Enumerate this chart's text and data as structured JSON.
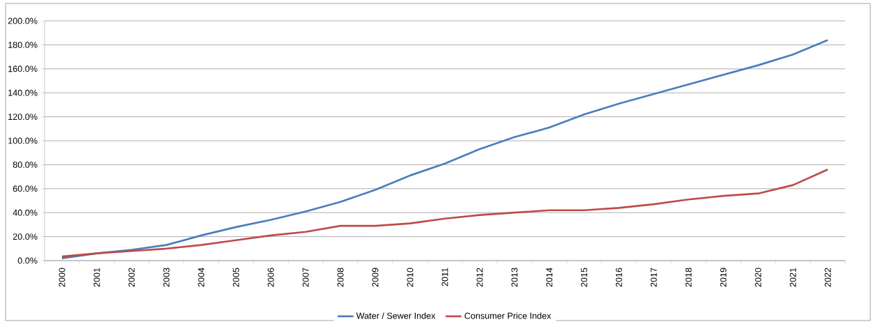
{
  "chart_data": {
    "type": "line",
    "categories": [
      "2000",
      "2001",
      "2002",
      "2003",
      "2004",
      "2005",
      "2006",
      "2007",
      "2008",
      "2009",
      "2010",
      "2011",
      "2012",
      "2013",
      "2014",
      "2015",
      "2016",
      "2017",
      "2018",
      "2019",
      "2020",
      "2021",
      "2022"
    ],
    "series": [
      {
        "name": "Water / Sewer Index",
        "color": "#4a7ebb",
        "values": [
          2,
          6,
          9,
          13,
          21,
          28,
          34,
          41,
          49,
          59,
          71,
          81,
          93,
          103,
          111,
          122,
          131,
          139,
          147,
          155,
          163,
          172,
          184
        ]
      },
      {
        "name": "Consumer Price Index",
        "color": "#be4b48",
        "values": [
          3.4,
          6,
          8,
          10,
          13,
          17,
          21,
          24,
          29,
          29,
          31,
          35,
          38,
          40,
          42,
          42,
          44,
          47,
          51,
          54,
          56,
          63,
          76
        ]
      }
    ],
    "ylim": [
      0,
      200
    ],
    "yticks": [
      {
        "value": 0,
        "label": "0.0%"
      },
      {
        "value": 20,
        "label": "20.0%"
      },
      {
        "value": 40,
        "label": "40.0%"
      },
      {
        "value": 60,
        "label": "60.0%"
      },
      {
        "value": 80,
        "label": "80.0%"
      },
      {
        "value": 100,
        "label": "100.0%"
      },
      {
        "value": 120,
        "label": "120.0%"
      },
      {
        "value": 140,
        "label": "140.0%"
      },
      {
        "value": 160,
        "label": "160.0%"
      },
      {
        "value": 180,
        "label": "180.0%"
      },
      {
        "value": 200,
        "label": "200.0%"
      }
    ],
    "grid": "y",
    "legend": "bottom",
    "marker": "none",
    "line_style": "solid"
  }
}
